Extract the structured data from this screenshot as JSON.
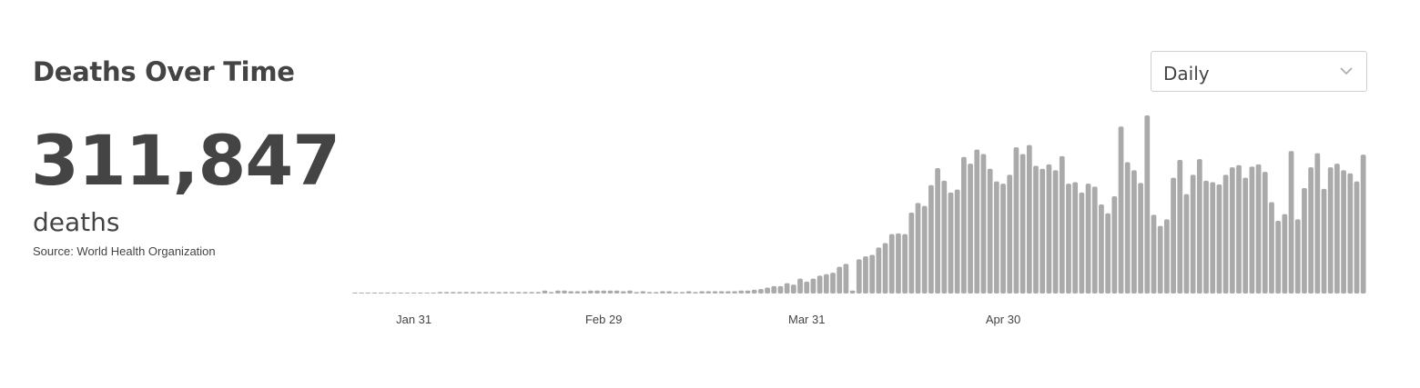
{
  "header": {
    "title": "Deaths Over Time"
  },
  "summary": {
    "total": "311,847",
    "unit": "deaths",
    "source": "Source: World Health Organization"
  },
  "dropdown": {
    "selected": "Daily",
    "icon": "chevron-down-icon"
  },
  "colors": {
    "bar": "#aaaaaa",
    "text": "#444444"
  },
  "chart_data": {
    "type": "bar",
    "title": "Deaths Over Time",
    "xlabel": "",
    "ylabel": "",
    "x_start": "Jan 22",
    "x_tick_labels": [
      "Jan 31",
      "Feb 29",
      "Mar 31",
      "Apr 30"
    ],
    "grid": false,
    "values": [
      1,
      1,
      1,
      1,
      1,
      1,
      1,
      1,
      1,
      1,
      1,
      1,
      1,
      2,
      2,
      2,
      2,
      2,
      2,
      2,
      2,
      2,
      2,
      2,
      2,
      2,
      2,
      2,
      2,
      4,
      2,
      4,
      4,
      3,
      3,
      3,
      4,
      4,
      4,
      4,
      4,
      3,
      4,
      2,
      3,
      2,
      2,
      3,
      3,
      2,
      2,
      3,
      2,
      3,
      3,
      3,
      3,
      3,
      3,
      4,
      4,
      5,
      6,
      8,
      10,
      10,
      14,
      12,
      20,
      16,
      20,
      24,
      26,
      28,
      36,
      40,
      4,
      46,
      50,
      52,
      62,
      68,
      80,
      81,
      80,
      109,
      122,
      118,
      146,
      169,
      152,
      136,
      140,
      184,
      175,
      194,
      188,
      168,
      151,
      148,
      160,
      197,
      188,
      200,
      172,
      168,
      174,
      166,
      185,
      148,
      150,
      136,
      148,
      144,
      120,
      108,
      131,
      225,
      177,
      166,
      149,
      240,
      106,
      91,
      100,
      156,
      180,
      134,
      160,
      181,
      152,
      150,
      147,
      160,
      170,
      173,
      156,
      171,
      174,
      164,
      123,
      98,
      107,
      192,
      100,
      142,
      170,
      189,
      141,
      170,
      175,
      166,
      162,
      151,
      187
    ]
  }
}
